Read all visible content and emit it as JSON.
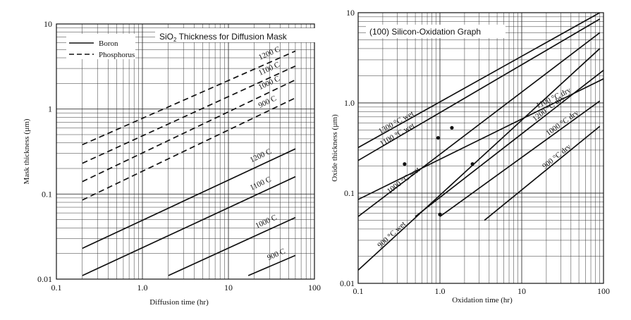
{
  "colors": {
    "ink": "#111111",
    "grid": "#333333",
    "background": "#ffffff"
  },
  "chart_data": [
    {
      "type": "line",
      "title": "SiO",
      "title_sub": "2",
      "title_rest": " Thickness for Diffusion Mask",
      "xlabel": "Diffusion time (hr)",
      "ylabel": "Mask thickness (µm)",
      "x_scale": "log",
      "y_scale": "log",
      "xlim": [
        0.1,
        100
      ],
      "ylim": [
        0.01,
        10
      ],
      "grid": true,
      "x_tick_labels": [
        "0.1",
        "1.0",
        "10",
        "100"
      ],
      "y_tick_labels": [
        "0.01",
        "0.1",
        "1",
        "10"
      ],
      "legend": {
        "placement": "top-left",
        "entries": [
          {
            "name": "Boron",
            "style": "solid"
          },
          {
            "name": "Phosphorus",
            "style": "dashed"
          }
        ]
      },
      "series": [
        {
          "name": "1200 C",
          "group": "Phosphorus",
          "style": "dashed",
          "x": [
            0.2,
            60
          ],
          "y": [
            0.38,
            4.8
          ]
        },
        {
          "name": "1100 C",
          "group": "Phosphorus",
          "style": "dashed",
          "x": [
            0.2,
            60
          ],
          "y": [
            0.23,
            3.2
          ]
        },
        {
          "name": "1000 C",
          "group": "Phosphorus",
          "style": "dashed",
          "x": [
            0.2,
            60
          ],
          "y": [
            0.14,
            2.2
          ]
        },
        {
          "name": "900 C",
          "group": "Phosphorus",
          "style": "dashed",
          "x": [
            0.2,
            60
          ],
          "y": [
            0.085,
            1.35
          ]
        },
        {
          "name": "1200 C",
          "group": "Boron",
          "style": "solid",
          "x": [
            0.2,
            60
          ],
          "y": [
            0.023,
            0.34
          ]
        },
        {
          "name": "1100 C",
          "group": "Boron",
          "style": "solid",
          "x": [
            0.2,
            60
          ],
          "y": [
            0.011,
            0.16
          ]
        },
        {
          "name": "1000 C",
          "group": "Boron",
          "style": "solid",
          "x": [
            2,
            60
          ],
          "y": [
            0.011,
            0.053
          ]
        },
        {
          "name": "900 C",
          "group": "Boron",
          "style": "solid",
          "x": [
            17,
            60
          ],
          "y": [
            0.011,
            0.019
          ]
        }
      ]
    },
    {
      "type": "line",
      "title": "(100) Silicon-Oxidation Graph",
      "xlabel": "Oxidation time (hr)",
      "ylabel": "Oxide thickness (µm)",
      "x_scale": "log",
      "y_scale": "log",
      "xlim": [
        0.1,
        100
      ],
      "ylim": [
        0.01,
        10
      ],
      "grid": true,
      "x_tick_labels": [
        "0.1",
        "1.0",
        "10",
        "100"
      ],
      "y_tick_labels": [
        "0.01",
        "0.1",
        "1.0",
        "10"
      ],
      "series": [
        {
          "name": "1300 °C wet",
          "x": [
            0.1,
            90
          ],
          "y": [
            0.32,
            10
          ]
        },
        {
          "name": "1100 °C wet",
          "x": [
            0.1,
            90
          ],
          "y": [
            0.23,
            8.5
          ]
        },
        {
          "name": "1000 °C wet",
          "x": [
            0.1,
            90
          ],
          "y": [
            0.055,
            6
          ]
        },
        {
          "name": "900 °C wet",
          "x": [
            0.1,
            90
          ],
          "y": [
            0.014,
            4
          ]
        },
        {
          "name": "1200 °C dry",
          "x": [
            0.5,
            100
          ],
          "y": [
            0.055,
            2.3
          ]
        },
        {
          "name": "1100 °C dry",
          "x": [
            0.1,
            100
          ],
          "y": [
            0.085,
            1.85
          ]
        },
        {
          "name": "1000 °C dry",
          "x": [
            1,
            90
          ],
          "y": [
            0.055,
            1.05
          ]
        },
        {
          "name": "900 °C dry",
          "x": [
            3.5,
            90
          ],
          "y": [
            0.05,
            0.55
          ]
        }
      ],
      "markers": [
        {
          "x": 0.37,
          "y": 0.21
        },
        {
          "x": 0.95,
          "y": 0.41
        },
        {
          "x": 1.4,
          "y": 0.53
        },
        {
          "x": 1.0,
          "y": 0.058
        },
        {
          "x": 2.5,
          "y": 0.21
        }
      ]
    }
  ]
}
